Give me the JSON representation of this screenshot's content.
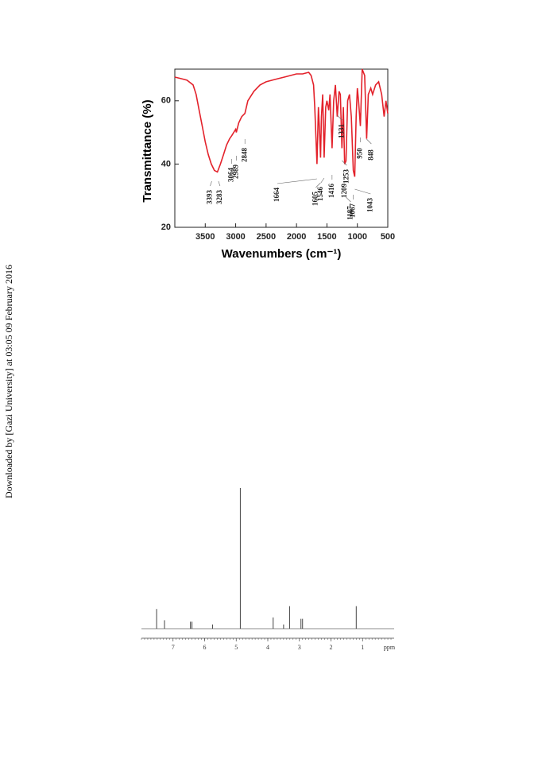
{
  "side_note": "Downloaded by [Gazi University] at 03:05 09 February 2016",
  "chart_data": [
    {
      "type": "line",
      "ylabel": "Transmittance (%)",
      "xlabel": "Wavenumbers (cm⁻¹)",
      "color": "#e3222b",
      "xlim": [
        4000,
        500
      ],
      "xticks": [
        3500,
        3000,
        2500,
        2000,
        1500,
        1000,
        500
      ],
      "ylim": [
        20,
        70
      ],
      "yticks": [
        20,
        40,
        60
      ],
      "x": [
        4000,
        3900,
        3800,
        3700,
        3650,
        3600,
        3550,
        3500,
        3450,
        3400,
        3350,
        3300,
        3250,
        3200,
        3150,
        3100,
        3064,
        3000,
        2989,
        2950,
        2900,
        2848,
        2800,
        2700,
        2600,
        2500,
        2400,
        2300,
        2200,
        2100,
        2000,
        1900,
        1800,
        1760,
        1720,
        1700,
        1664,
        1640,
        1620,
        1605,
        1590,
        1570,
        1546,
        1520,
        1500,
        1470,
        1450,
        1416,
        1390,
        1360,
        1331,
        1300,
        1280,
        1253,
        1230,
        1209,
        1187,
        1160,
        1130,
        1100,
        1067,
        1043,
        1020,
        1000,
        980,
        950,
        920,
        880,
        848,
        820,
        780,
        750,
        700,
        650,
        600,
        560,
        530,
        500
      ],
      "values": [
        67.5,
        67,
        66.5,
        65,
        62,
        57,
        52,
        47,
        43,
        40,
        38,
        37.5,
        40,
        43,
        46,
        48,
        49,
        51,
        50,
        53,
        55,
        56,
        60,
        63,
        65,
        66,
        66.5,
        67,
        67.5,
        68,
        68.5,
        68.5,
        69,
        68,
        65,
        58,
        40,
        58,
        50,
        42,
        55,
        62,
        42,
        58,
        60,
        57,
        62,
        45,
        60,
        65,
        55,
        63,
        62,
        45,
        58,
        40,
        41,
        60,
        62,
        55,
        38,
        36,
        55,
        64,
        60,
        52,
        70,
        68,
        48,
        62,
        64,
        62,
        65,
        66,
        62,
        55,
        60,
        56
      ],
      "peak_labels": [
        3393,
        3283,
        3064,
        2989,
        2848,
        1664,
        1605,
        1546,
        1416,
        1187,
        1253,
        1331,
        1209,
        1067,
        950,
        848,
        1043
      ]
    },
    {
      "type": "stem",
      "xlabel": "ppm",
      "color": "#444",
      "xlim": [
        8,
        0
      ],
      "xticks": [
        7,
        6,
        5,
        4,
        3,
        2,
        1
      ],
      "ylim": [
        0,
        100
      ],
      "x": [
        7.52,
        7.27,
        6.45,
        6.4,
        5.75,
        4.87,
        3.83,
        3.5,
        3.31,
        2.95,
        2.9,
        1.2
      ],
      "values": [
        14,
        6,
        5,
        5,
        3,
        100,
        8,
        3,
        16,
        7,
        7,
        16
      ]
    }
  ]
}
